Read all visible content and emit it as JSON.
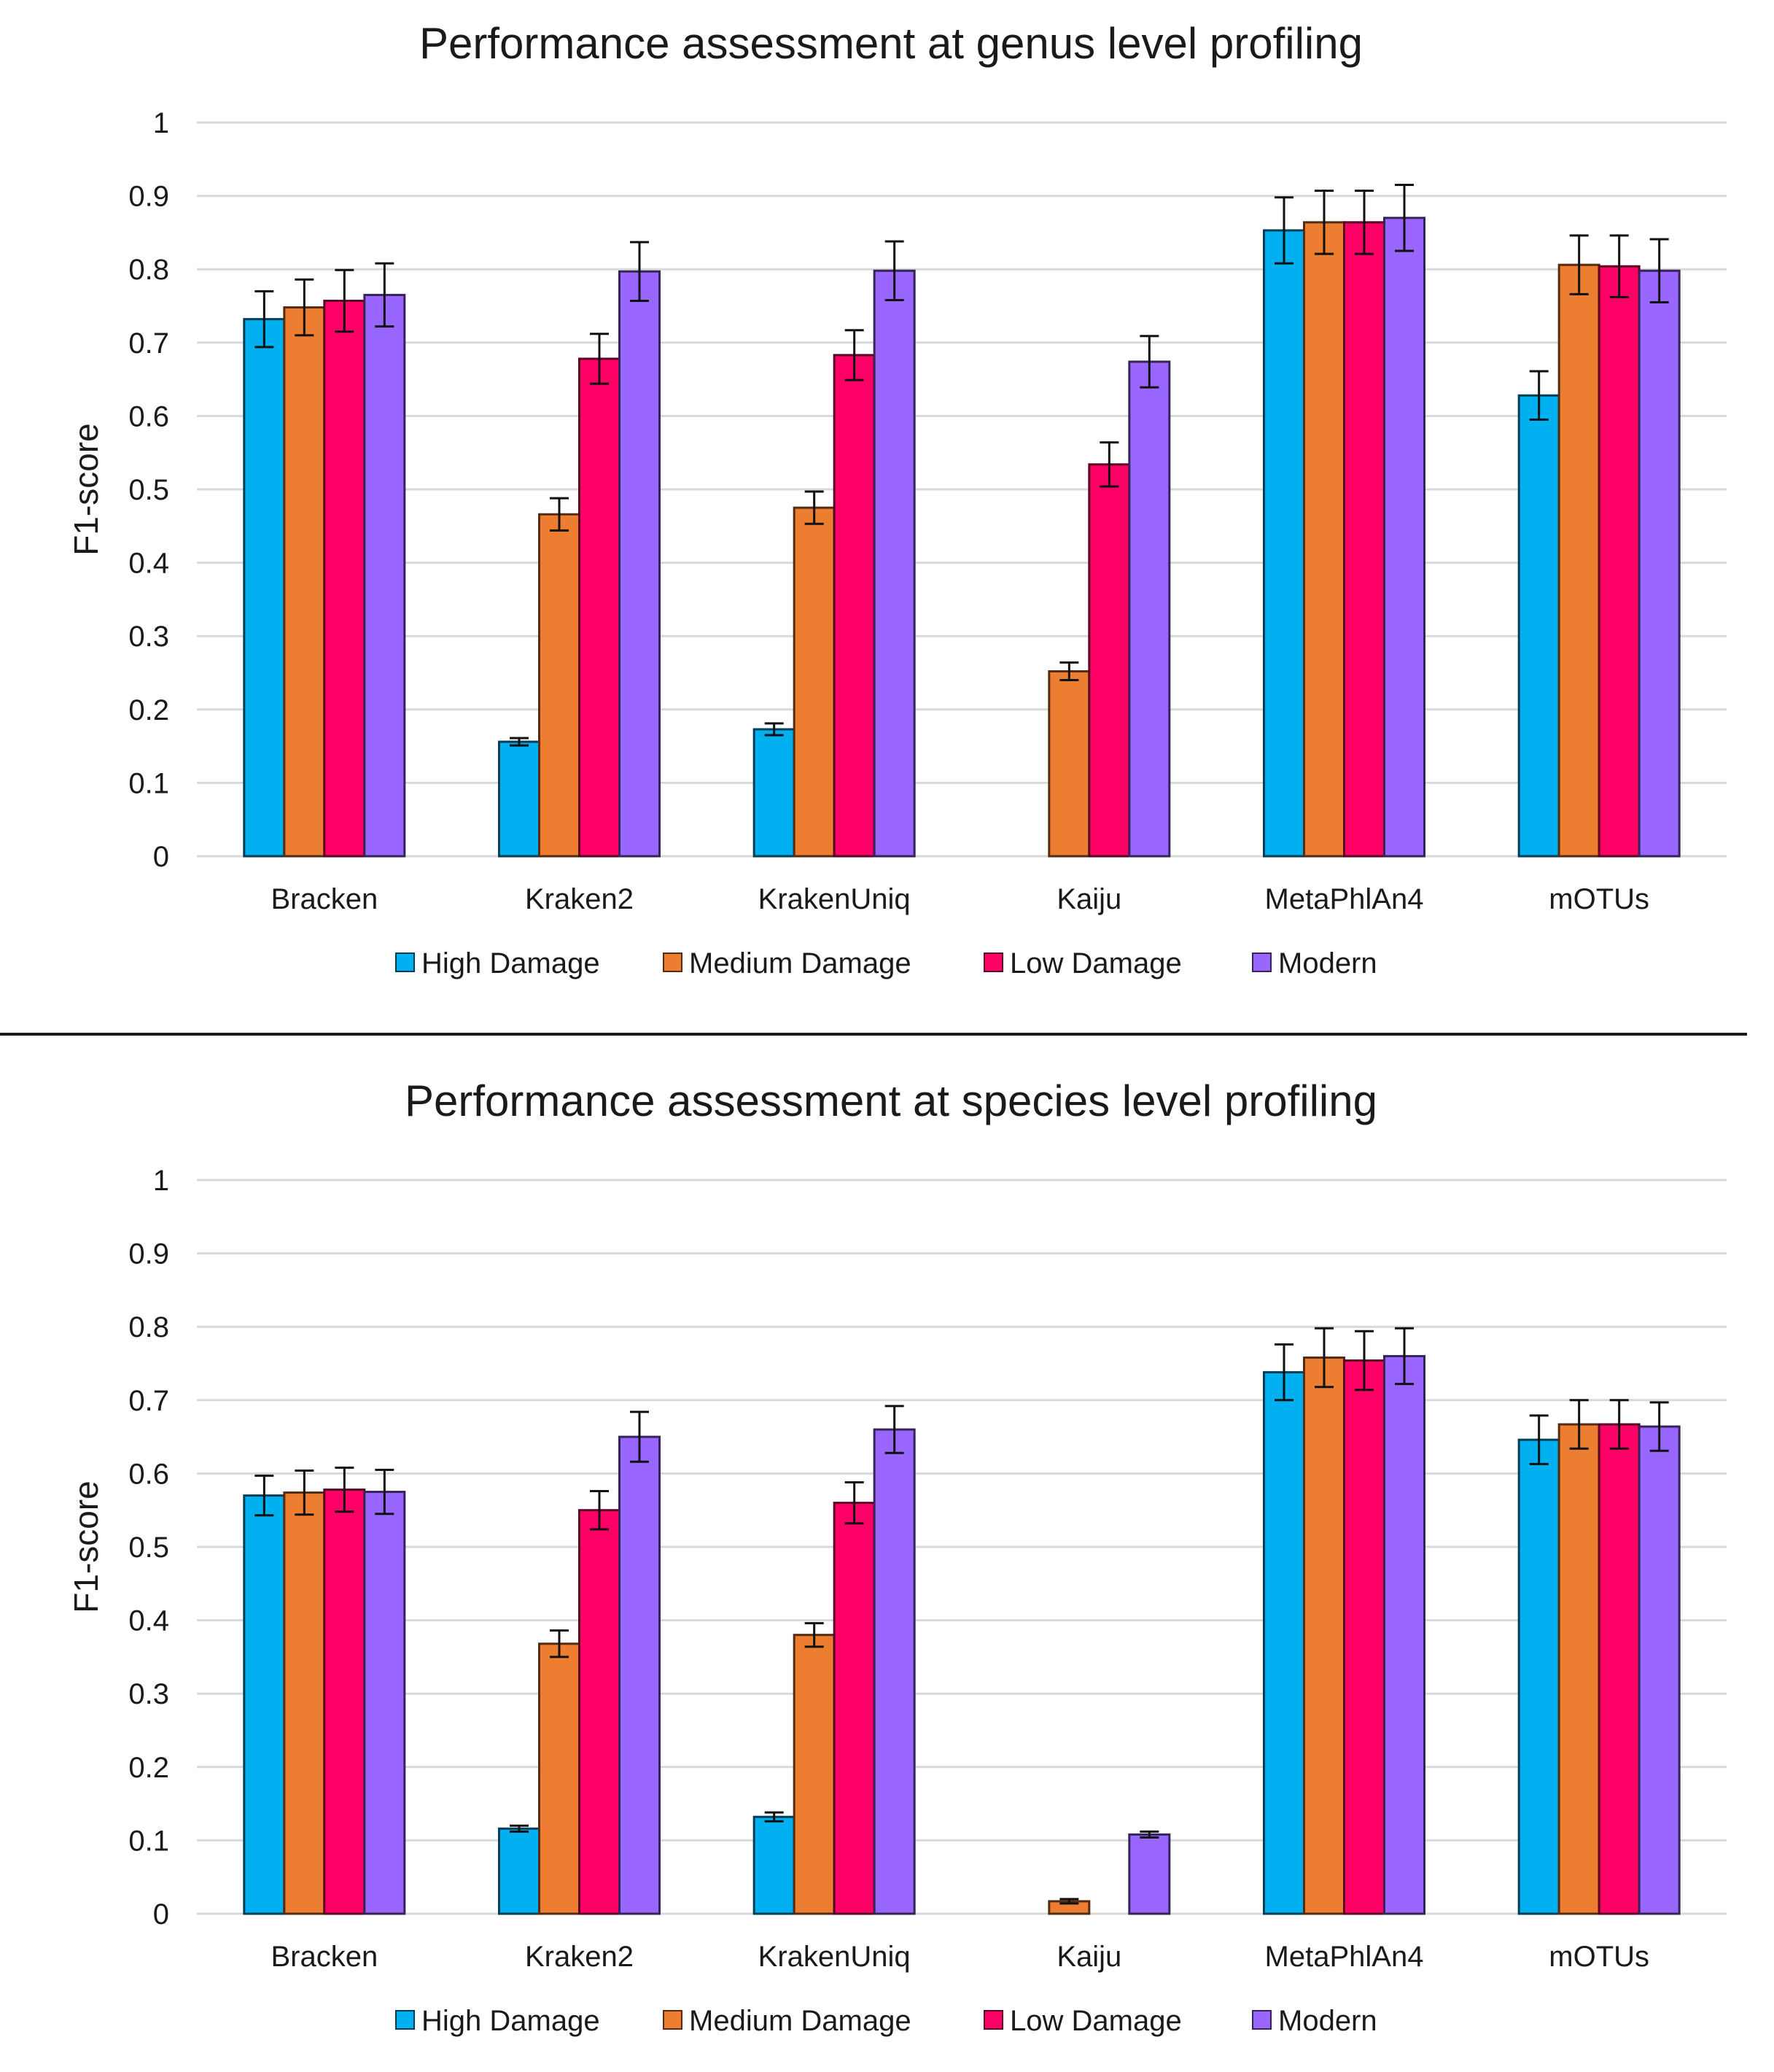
{
  "legend_colors": [
    "#00b0f0",
    "#ed7d31",
    "#ff0066",
    "#9966ff"
  ],
  "chart_data": [
    {
      "type": "bar",
      "title": "Performance assessment at genus level profiling",
      "xlabel": "",
      "ylabel": "F1-score",
      "ylim": [
        0,
        1
      ],
      "yticks": [
        "0",
        "0.1",
        "0.2",
        "0.3",
        "0.4",
        "0.5",
        "0.6",
        "0.7",
        "0.8",
        "0.9",
        "1"
      ],
      "categories": [
        "Bracken",
        "Kraken2",
        "KrakenUniq",
        "Kaiju",
        "MetaPhlAn4",
        "mOTUs"
      ],
      "legend_position": "bottom",
      "series": [
        {
          "name": "High Damage",
          "values": [
            0.732,
            0.156,
            0.173,
            0,
            0.853,
            0.628
          ],
          "errors": [
            0.038,
            0.005,
            0.008,
            0,
            0.045,
            0.033
          ]
        },
        {
          "name": "Medium Damage",
          "values": [
            0.748,
            0.466,
            0.475,
            0.252,
            0.864,
            0.806
          ],
          "errors": [
            0.038,
            0.022,
            0.022,
            0.012,
            0.043,
            0.04
          ]
        },
        {
          "name": "Low Damage",
          "values": [
            0.757,
            0.678,
            0.683,
            0.534,
            0.864,
            0.804
          ],
          "errors": [
            0.042,
            0.034,
            0.034,
            0.03,
            0.043,
            0.042
          ]
        },
        {
          "name": "Modern",
          "values": [
            0.765,
            0.797,
            0.798,
            0.674,
            0.87,
            0.798
          ],
          "errors": [
            0.043,
            0.04,
            0.04,
            0.035,
            0.045,
            0.043
          ]
        }
      ]
    },
    {
      "type": "bar",
      "title": "Performance assessment at species level profiling",
      "xlabel": "",
      "ylabel": "F1-score",
      "ylim": [
        0,
        1
      ],
      "yticks": [
        "0",
        "0.1",
        "0.2",
        "0.3",
        "0.4",
        "0.5",
        "0.6",
        "0.7",
        "0.8",
        "0.9",
        "1"
      ],
      "categories": [
        "Bracken",
        "Kraken2",
        "KrakenUniq",
        "Kaiju",
        "MetaPhlAn4",
        "mOTUs"
      ],
      "legend_position": "bottom",
      "series": [
        {
          "name": "High Damage",
          "values": [
            0.57,
            0.116,
            0.132,
            0,
            0.738,
            0.646
          ],
          "errors": [
            0.027,
            0.004,
            0.006,
            0,
            0.038,
            0.033
          ]
        },
        {
          "name": "Medium Damage",
          "values": [
            0.574,
            0.368,
            0.38,
            0.017,
            0.758,
            0.667
          ],
          "errors": [
            0.03,
            0.018,
            0.016,
            0.003,
            0.04,
            0.033
          ]
        },
        {
          "name": "Low Damage",
          "values": [
            0.578,
            0.55,
            0.56,
            0,
            0.754,
            0.667
          ],
          "errors": [
            0.03,
            0.026,
            0.028,
            0,
            0.04,
            0.033
          ]
        },
        {
          "name": "Modern",
          "values": [
            0.575,
            0.65,
            0.66,
            0.108,
            0.76,
            0.664
          ],
          "errors": [
            0.03,
            0.034,
            0.032,
            0.004,
            0.038,
            0.033
          ]
        }
      ]
    }
  ]
}
